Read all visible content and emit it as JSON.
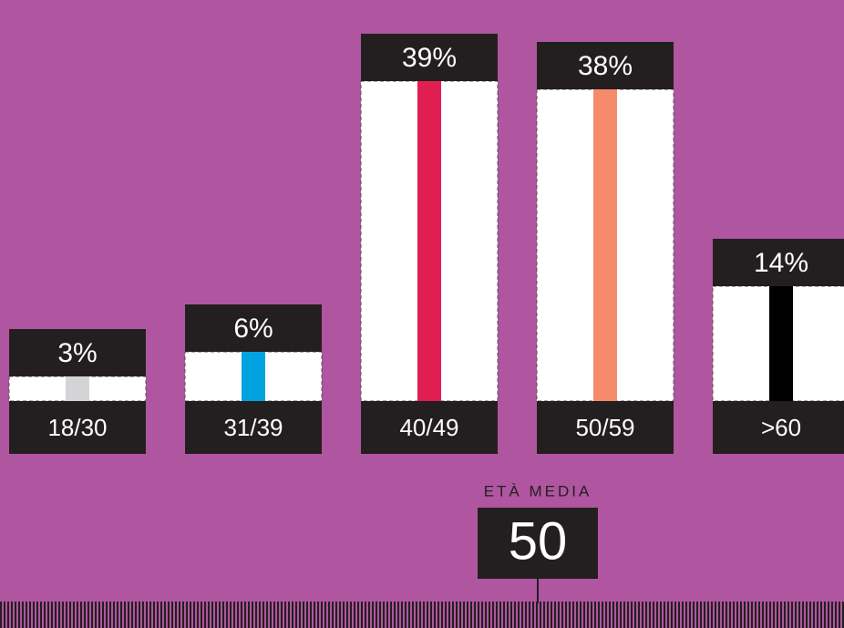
{
  "chart_data": {
    "type": "bar",
    "categories": [
      "18/30",
      "31/39",
      "40/49",
      "50/59",
      ">60"
    ],
    "values": [
      3,
      6,
      39,
      38,
      14
    ],
    "value_labels": [
      "3%",
      "6%",
      "39%",
      "38%",
      "14%"
    ],
    "colors": [
      "#d4d4d6",
      "#00a3e0",
      "#e01e52",
      "#f58b6b",
      "#000000"
    ],
    "ylim": [
      0,
      39
    ],
    "average": {
      "label": "ETÀ MEDIA",
      "value": 50
    }
  }
}
